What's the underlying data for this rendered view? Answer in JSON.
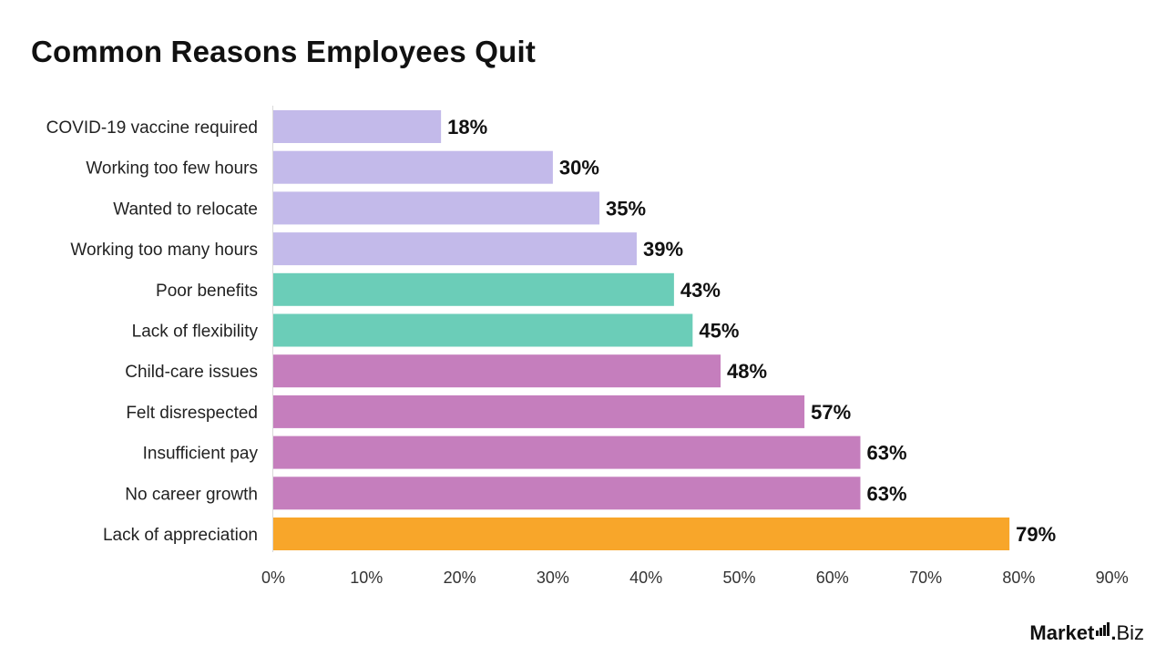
{
  "brand": {
    "name": "Market",
    "separator": ".",
    "suffix": "Biz"
  },
  "chart_data": {
    "type": "bar",
    "orientation": "horizontal",
    "title": "Common Reasons Employees Quit",
    "xlabel": "",
    "ylabel": "",
    "xlim": [
      0,
      90
    ],
    "ticks": [
      "0%",
      "10%",
      "20%",
      "30%",
      "40%",
      "50%",
      "60%",
      "70%",
      "80%",
      "90%"
    ],
    "grid": false,
    "categories": [
      "COVID-19 vaccine required",
      "Working too few hours",
      "Wanted to relocate",
      "Working too many hours",
      "Poor benefits",
      "Lack of flexibility",
      "Child-care issues",
      "Felt disrespected",
      "Insufficient pay",
      "No career growth",
      "Lack of appreciation"
    ],
    "values": [
      18,
      30,
      35,
      39,
      43,
      45,
      48,
      57,
      63,
      63,
      79
    ],
    "value_labels": [
      "18%",
      "30%",
      "35%",
      "39%",
      "43%",
      "45%",
      "48%",
      "57%",
      "63%",
      "63%",
      "79%"
    ],
    "colors": [
      "#c3baea",
      "#c3baea",
      "#c3baea",
      "#c3baea",
      "#6bcdb8",
      "#6bcdb8",
      "#c57ebd",
      "#c57ebd",
      "#c57ebd",
      "#c57ebd",
      "#f8a62a"
    ]
  }
}
